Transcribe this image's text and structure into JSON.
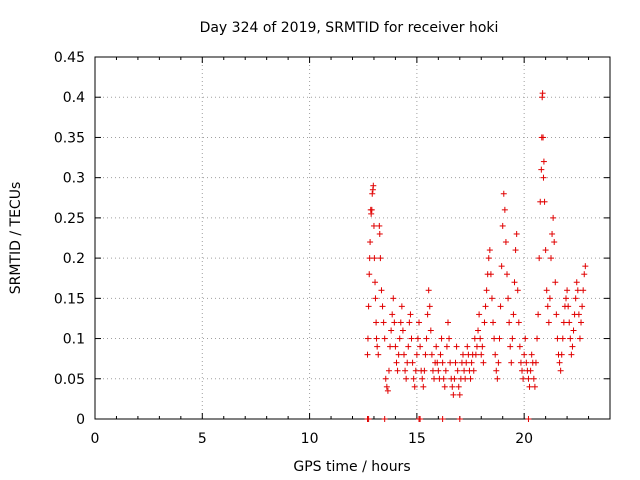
{
  "chart_data": {
    "type": "scatter",
    "title": "Day 324 of 2019, SRMTID for receiver hoki",
    "xlabel": "GPS time / hours",
    "ylabel": "SRMTID / TECUs",
    "xlim": [
      0,
      24
    ],
    "ylim": [
      0,
      0.45
    ],
    "xticks": [
      0,
      5,
      10,
      15,
      20
    ],
    "yticks": [
      0,
      0.05,
      0.1,
      0.15,
      0.2,
      0.25,
      0.3,
      0.35,
      0.4,
      0.45
    ],
    "xtick_labels": [
      "0",
      "5",
      "10",
      "15",
      "20"
    ],
    "ytick_labels": [
      "0",
      "0.05",
      "0.1",
      "0.15",
      "0.2",
      "0.25",
      "0.3",
      "0.35",
      "0.4",
      "0.45"
    ],
    "grid": true,
    "marker": "+",
    "color": "#e00000",
    "series": [
      {
        "name": "SRMTID",
        "points": [
          [
            12.7,
            0.0
          ],
          [
            12.75,
            0.0
          ],
          [
            13.5,
            0.0
          ],
          [
            15.1,
            0.0
          ],
          [
            15.15,
            0.0
          ],
          [
            16.2,
            0.0
          ],
          [
            17.0,
            0.0
          ],
          [
            20.2,
            0.0
          ],
          [
            12.7,
            0.08
          ],
          [
            12.72,
            0.1
          ],
          [
            12.75,
            0.14
          ],
          [
            12.78,
            0.18
          ],
          [
            12.8,
            0.2
          ],
          [
            12.82,
            0.22
          ],
          [
            12.85,
            0.26
          ],
          [
            12.87,
            0.255
          ],
          [
            12.9,
            0.26
          ],
          [
            12.92,
            0.28
          ],
          [
            12.95,
            0.285
          ],
          [
            12.97,
            0.29
          ],
          [
            13.0,
            0.24
          ],
          [
            13.02,
            0.2
          ],
          [
            13.05,
            0.17
          ],
          [
            13.07,
            0.15
          ],
          [
            13.1,
            0.12
          ],
          [
            13.12,
            0.1
          ],
          [
            13.15,
            0.09
          ],
          [
            13.2,
            0.08
          ],
          [
            13.25,
            0.24
          ],
          [
            13.27,
            0.23
          ],
          [
            13.3,
            0.2
          ],
          [
            13.35,
            0.16
          ],
          [
            13.4,
            0.14
          ],
          [
            13.45,
            0.12
          ],
          [
            13.5,
            0.1
          ],
          [
            13.55,
            0.05
          ],
          [
            13.6,
            0.04
          ],
          [
            13.65,
            0.035
          ],
          [
            13.7,
            0.06
          ],
          [
            13.75,
            0.09
          ],
          [
            13.8,
            0.11
          ],
          [
            13.85,
            0.13
          ],
          [
            13.9,
            0.15
          ],
          [
            13.95,
            0.12
          ],
          [
            14.0,
            0.09
          ],
          [
            14.05,
            0.07
          ],
          [
            14.1,
            0.06
          ],
          [
            14.15,
            0.08
          ],
          [
            14.2,
            0.1
          ],
          [
            14.25,
            0.12
          ],
          [
            14.3,
            0.14
          ],
          [
            14.35,
            0.11
          ],
          [
            14.4,
            0.08
          ],
          [
            14.45,
            0.06
          ],
          [
            14.5,
            0.05
          ],
          [
            14.55,
            0.07
          ],
          [
            14.6,
            0.09
          ],
          [
            14.65,
            0.12
          ],
          [
            14.7,
            0.13
          ],
          [
            14.75,
            0.1
          ],
          [
            14.8,
            0.07
          ],
          [
            14.85,
            0.05
          ],
          [
            14.9,
            0.04
          ],
          [
            14.95,
            0.06
          ],
          [
            15.0,
            0.08
          ],
          [
            15.05,
            0.1
          ],
          [
            15.1,
            0.12
          ],
          [
            15.15,
            0.09
          ],
          [
            15.2,
            0.06
          ],
          [
            15.25,
            0.05
          ],
          [
            15.3,
            0.04
          ],
          [
            15.35,
            0.06
          ],
          [
            15.4,
            0.08
          ],
          [
            15.45,
            0.1
          ],
          [
            15.5,
            0.13
          ],
          [
            15.55,
            0.16
          ],
          [
            15.6,
            0.14
          ],
          [
            15.65,
            0.11
          ],
          [
            15.7,
            0.08
          ],
          [
            15.75,
            0.06
          ],
          [
            15.8,
            0.05
          ],
          [
            15.85,
            0.07
          ],
          [
            15.9,
            0.09
          ],
          [
            15.95,
            0.07
          ],
          [
            16.0,
            0.06
          ],
          [
            16.05,
            0.05
          ],
          [
            16.1,
            0.08
          ],
          [
            16.15,
            0.1
          ],
          [
            16.2,
            0.07
          ],
          [
            16.25,
            0.05
          ],
          [
            16.3,
            0.04
          ],
          [
            16.35,
            0.06
          ],
          [
            16.4,
            0.09
          ],
          [
            16.45,
            0.12
          ],
          [
            16.5,
            0.1
          ],
          [
            16.55,
            0.07
          ],
          [
            16.6,
            0.05
          ],
          [
            16.65,
            0.04
          ],
          [
            16.7,
            0.03
          ],
          [
            16.75,
            0.05
          ],
          [
            16.8,
            0.07
          ],
          [
            16.85,
            0.09
          ],
          [
            16.9,
            0.06
          ],
          [
            16.95,
            0.04
          ],
          [
            17.0,
            0.03
          ],
          [
            17.05,
            0.05
          ],
          [
            17.1,
            0.07
          ],
          [
            17.15,
            0.08
          ],
          [
            17.2,
            0.06
          ],
          [
            17.25,
            0.05
          ],
          [
            17.3,
            0.07
          ],
          [
            17.35,
            0.09
          ],
          [
            17.4,
            0.08
          ],
          [
            17.45,
            0.06
          ],
          [
            17.5,
            0.05
          ],
          [
            17.55,
            0.07
          ],
          [
            17.6,
            0.08
          ],
          [
            17.65,
            0.06
          ],
          [
            17.7,
            0.1
          ],
          [
            17.75,
            0.08
          ],
          [
            17.8,
            0.09
          ],
          [
            17.85,
            0.11
          ],
          [
            17.9,
            0.13
          ],
          [
            17.95,
            0.1
          ],
          [
            18.0,
            0.08
          ],
          [
            18.05,
            0.09
          ],
          [
            18.1,
            0.07
          ],
          [
            18.15,
            0.12
          ],
          [
            18.2,
            0.14
          ],
          [
            18.25,
            0.16
          ],
          [
            18.3,
            0.18
          ],
          [
            18.35,
            0.2
          ],
          [
            18.4,
            0.21
          ],
          [
            18.45,
            0.18
          ],
          [
            18.5,
            0.15
          ],
          [
            18.55,
            0.12
          ],
          [
            18.6,
            0.1
          ],
          [
            18.65,
            0.08
          ],
          [
            18.7,
            0.06
          ],
          [
            18.75,
            0.05
          ],
          [
            18.8,
            0.07
          ],
          [
            18.85,
            0.1
          ],
          [
            18.9,
            0.14
          ],
          [
            18.95,
            0.19
          ],
          [
            19.0,
            0.24
          ],
          [
            19.05,
            0.28
          ],
          [
            19.1,
            0.26
          ],
          [
            19.15,
            0.22
          ],
          [
            19.2,
            0.18
          ],
          [
            19.25,
            0.15
          ],
          [
            19.3,
            0.12
          ],
          [
            19.35,
            0.09
          ],
          [
            19.4,
            0.07
          ],
          [
            19.45,
            0.1
          ],
          [
            19.5,
            0.13
          ],
          [
            19.55,
            0.17
          ],
          [
            19.6,
            0.21
          ],
          [
            19.65,
            0.23
          ],
          [
            19.7,
            0.16
          ],
          [
            19.75,
            0.12
          ],
          [
            19.8,
            0.09
          ],
          [
            19.85,
            0.07
          ],
          [
            19.9,
            0.06
          ],
          [
            19.95,
            0.05
          ],
          [
            20.0,
            0.08
          ],
          [
            20.05,
            0.1
          ],
          [
            20.1,
            0.07
          ],
          [
            20.15,
            0.06
          ],
          [
            20.2,
            0.05
          ],
          [
            20.25,
            0.04
          ],
          [
            20.3,
            0.06
          ],
          [
            20.35,
            0.08
          ],
          [
            20.4,
            0.07
          ],
          [
            20.45,
            0.05
          ],
          [
            20.5,
            0.04
          ],
          [
            20.55,
            0.07
          ],
          [
            20.6,
            0.1
          ],
          [
            20.65,
            0.13
          ],
          [
            20.7,
            0.2
          ],
          [
            20.75,
            0.27
          ],
          [
            20.8,
            0.31
          ],
          [
            20.82,
            0.35
          ],
          [
            20.84,
            0.4
          ],
          [
            20.86,
            0.405
          ],
          [
            20.88,
            0.35
          ],
          [
            20.9,
            0.3
          ],
          [
            20.92,
            0.32
          ],
          [
            20.95,
            0.27
          ],
          [
            21.0,
            0.21
          ],
          [
            21.05,
            0.16
          ],
          [
            21.1,
            0.14
          ],
          [
            21.15,
            0.12
          ],
          [
            21.2,
            0.15
          ],
          [
            21.25,
            0.2
          ],
          [
            21.3,
            0.23
          ],
          [
            21.35,
            0.25
          ],
          [
            21.4,
            0.22
          ],
          [
            21.45,
            0.17
          ],
          [
            21.5,
            0.13
          ],
          [
            21.55,
            0.1
          ],
          [
            21.6,
            0.08
          ],
          [
            21.65,
            0.07
          ],
          [
            21.7,
            0.06
          ],
          [
            21.75,
            0.08
          ],
          [
            21.8,
            0.1
          ],
          [
            21.85,
            0.12
          ],
          [
            21.9,
            0.14
          ],
          [
            21.95,
            0.15
          ],
          [
            22.0,
            0.16
          ],
          [
            22.05,
            0.14
          ],
          [
            22.1,
            0.12
          ],
          [
            22.15,
            0.1
          ],
          [
            22.2,
            0.08
          ],
          [
            22.25,
            0.09
          ],
          [
            22.3,
            0.11
          ],
          [
            22.35,
            0.13
          ],
          [
            22.4,
            0.15
          ],
          [
            22.45,
            0.17
          ],
          [
            22.5,
            0.16
          ],
          [
            22.55,
            0.13
          ],
          [
            22.6,
            0.1
          ],
          [
            22.65,
            0.12
          ],
          [
            22.7,
            0.14
          ],
          [
            22.75,
            0.16
          ],
          [
            22.8,
            0.18
          ],
          [
            22.85,
            0.19
          ]
        ]
      }
    ]
  }
}
